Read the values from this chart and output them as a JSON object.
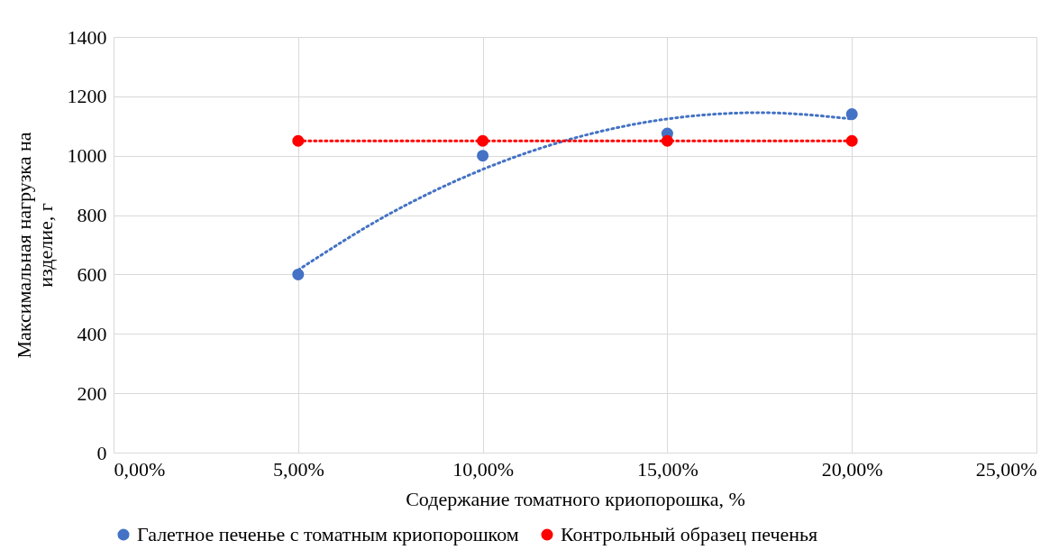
{
  "chart_data": {
    "type": "scatter",
    "xlabel": "Содержание томатного криопорошка, %",
    "ylabel": "Максимальная нагрузка на изделие, г",
    "xlim": [
      0,
      25
    ],
    "xticks": [
      {
        "value": 0,
        "label": "0,00%"
      },
      {
        "value": 5,
        "label": "5,00%"
      },
      {
        "value": 10,
        "label": "10,00%"
      },
      {
        "value": 15,
        "label": "15,00%"
      },
      {
        "value": 20,
        "label": "20,00%"
      },
      {
        "value": 25,
        "label": "25,00%"
      }
    ],
    "ylim": [
      0,
      1400
    ],
    "yticks": [
      0,
      200,
      400,
      600,
      800,
      1000,
      1200,
      1400
    ],
    "grid": true,
    "legend": "bottom",
    "marker": "circle",
    "series": [
      {
        "type": "line",
        "x": [
          5,
          7.5,
          10,
          12.5,
          15,
          17.5,
          20
        ],
        "values": [
          615,
          806,
          954,
          1060,
          1124,
          1145,
          1124
        ],
        "color": "#4472c4",
        "line_style": "dotted",
        "marker": "none"
      },
      {
        "type": "line",
        "x": [
          5,
          20
        ],
        "values": [
          1050,
          1050
        ],
        "color": "#ff0000",
        "line_style": "dotted",
        "marker": "none"
      },
      {
        "name": "Галетное печенье с томатным криопорошком",
        "x": [
          5,
          10,
          15,
          20
        ],
        "values": [
          600,
          1000,
          1075,
          1140
        ],
        "color": "#4472c4"
      },
      {
        "name": "Контрольный образец печенья",
        "x": [
          5,
          10,
          15,
          20
        ],
        "values": [
          1050,
          1050,
          1050,
          1050
        ],
        "color": "#ff0000"
      }
    ]
  }
}
